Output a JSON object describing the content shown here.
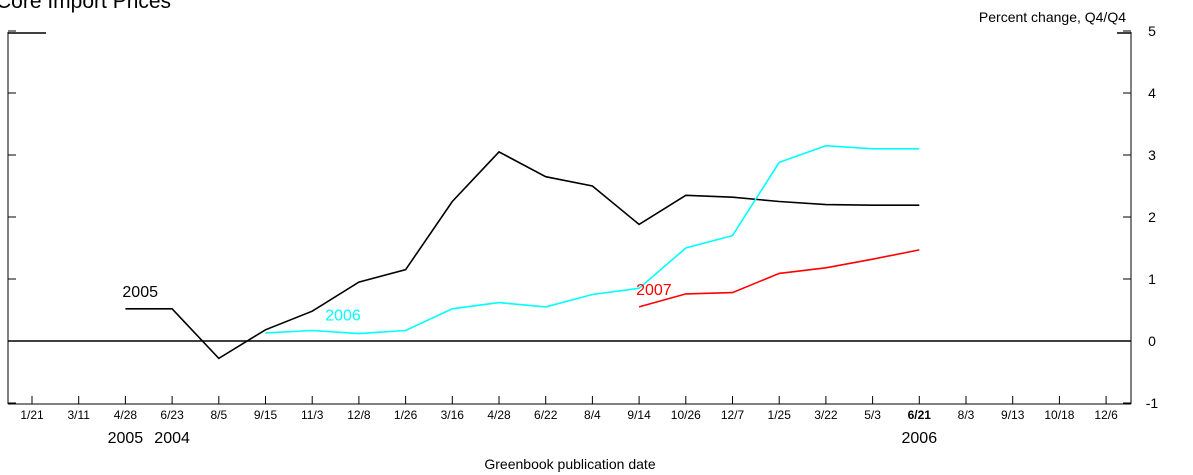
{
  "chart_data": {
    "type": "line",
    "title": "Core Import Prices",
    "units_label": "Percent change, Q4/Q4",
    "xlabel": "Greenbook publication date",
    "ylabel": "",
    "ylim": [
      -1,
      5
    ],
    "yticks": [
      "-1",
      "0",
      "1",
      "2",
      "3",
      "4",
      "5"
    ],
    "grid": false,
    "categories": [
      "1/21",
      "3/11",
      "4/28",
      "6/23",
      "8/5",
      "9/15",
      "11/3",
      "12/8",
      "1/26",
      "3/16",
      "4/28",
      "6/22",
      "8/4",
      "9/14",
      "10/26",
      "12/7",
      "1/25",
      "3/22",
      "5/3",
      "6/21",
      "8/3",
      "9/13",
      "10/18",
      "12/6"
    ],
    "bold_category": "6/21",
    "year_labels": [
      {
        "text": "2004",
        "center": "6/23"
      },
      {
        "text": "2005",
        "center": "4/28"
      },
      {
        "text": "2006",
        "center": "6/21"
      }
    ],
    "series": [
      {
        "name": "2005",
        "color": "#000000",
        "label_at": "4/28",
        "values": [
          null,
          null,
          0.52,
          0.52,
          -0.28,
          0.18,
          0.48,
          0.95,
          1.15,
          2.25,
          3.05,
          2.65,
          2.5,
          1.88,
          2.35,
          2.32,
          2.25,
          2.2,
          2.19,
          2.19,
          null,
          null,
          null,
          null
        ]
      },
      {
        "name": "2006",
        "color": "#00ffff",
        "label_at": "11/3",
        "values": [
          null,
          null,
          null,
          null,
          null,
          0.13,
          0.17,
          0.12,
          0.17,
          0.52,
          0.62,
          0.55,
          0.75,
          0.85,
          1.5,
          1.7,
          2.88,
          3.15,
          3.1,
          3.1,
          null,
          null,
          null,
          null
        ]
      },
      {
        "name": "2007",
        "color": "#ff0000",
        "label_at": "9/14",
        "values": [
          null,
          null,
          null,
          null,
          null,
          null,
          null,
          null,
          null,
          null,
          null,
          null,
          null,
          0.55,
          0.76,
          0.78,
          1.09,
          1.18,
          1.32,
          1.47,
          null,
          null,
          null,
          null
        ]
      }
    ]
  }
}
